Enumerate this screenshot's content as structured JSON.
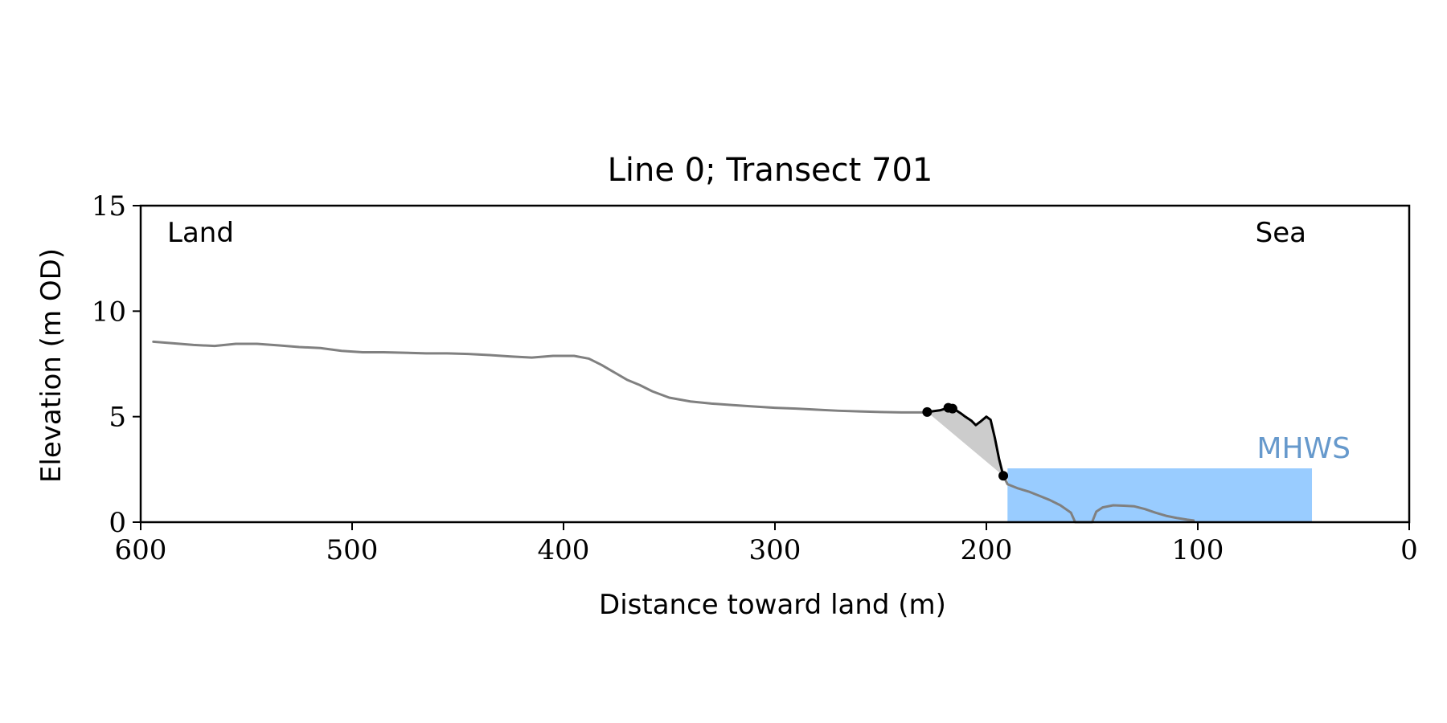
{
  "chart_data": {
    "type": "line",
    "title": "Line 0; Transect 701",
    "xlabel": "Distance toward land (m)",
    "ylabel": "Elevation (m OD)",
    "xlim": [
      600,
      0
    ],
    "ylim": [
      0,
      15
    ],
    "xticks": [
      600,
      500,
      400,
      300,
      200,
      100,
      0
    ],
    "yticks": [
      0,
      5,
      10,
      15
    ],
    "grid": false,
    "annotations": {
      "land": "Land",
      "sea": "Sea",
      "mhws": "MHWS"
    },
    "mhws": {
      "level": 2.55,
      "x_start": 190,
      "x_end": 46
    },
    "colors": {
      "profile": "#808080",
      "feature": "#000000",
      "fill": "#cccccc",
      "water": "#99ccff",
      "mhws_label": "#6699cc"
    },
    "series": [
      {
        "x": [
          594,
          585,
          575,
          565,
          555,
          545,
          535,
          525,
          515,
          505,
          495,
          485,
          475,
          465,
          455,
          445,
          435,
          425,
          415,
          405,
          395,
          388,
          382,
          376,
          370,
          364,
          358,
          350,
          340,
          330,
          320,
          310,
          300,
          290,
          280,
          270,
          260,
          250,
          240,
          235,
          230,
          228
        ],
        "y": [
          8.55,
          8.48,
          8.4,
          8.35,
          8.45,
          8.45,
          8.38,
          8.3,
          8.25,
          8.12,
          8.05,
          8.05,
          8.03,
          8.0,
          8.0,
          7.97,
          7.92,
          7.85,
          7.8,
          7.88,
          7.88,
          7.75,
          7.45,
          7.1,
          6.75,
          6.5,
          6.2,
          5.9,
          5.72,
          5.62,
          5.55,
          5.48,
          5.42,
          5.38,
          5.33,
          5.28,
          5.25,
          5.22,
          5.2,
          5.2,
          5.2,
          5.22
        ]
      },
      {
        "x": [
          228,
          222,
          218,
          215,
          212,
          210,
          207,
          205,
          203,
          200,
          198,
          196,
          194,
          192
        ],
        "y": [
          5.22,
          5.3,
          5.42,
          5.35,
          5.15,
          5.0,
          4.8,
          4.6,
          4.75,
          5.0,
          4.85,
          4.0,
          3.0,
          2.2
        ]
      },
      {
        "x": [
          192,
          190,
          185,
          180,
          175,
          170,
          165,
          160,
          158,
          150,
          148,
          145,
          140,
          135,
          130,
          125,
          120,
          115,
          110,
          105,
          102
        ],
        "y": [
          2.2,
          1.8,
          1.6,
          1.45,
          1.25,
          1.05,
          0.8,
          0.45,
          0.0,
          0.0,
          0.5,
          0.7,
          0.8,
          0.78,
          0.75,
          0.62,
          0.45,
          0.3,
          0.2,
          0.12,
          0.08
        ]
      }
    ],
    "markers": {
      "x": [
        228,
        218,
        216,
        192
      ],
      "y": [
        5.22,
        5.42,
        5.38,
        2.2
      ]
    },
    "shaded_region": {
      "x": [
        228,
        222,
        218,
        215,
        212,
        210,
        207,
        205,
        203,
        200,
        198,
        196,
        194,
        192
      ],
      "y_top": [
        5.22,
        5.3,
        5.42,
        5.35,
        5.15,
        5.0,
        4.8,
        4.6,
        4.75,
        5.0,
        4.85,
        4.0,
        3.0,
        2.2
      ],
      "baseline_from": [
        228,
        5.22
      ],
      "baseline_to": [
        192,
        2.2
      ]
    }
  }
}
